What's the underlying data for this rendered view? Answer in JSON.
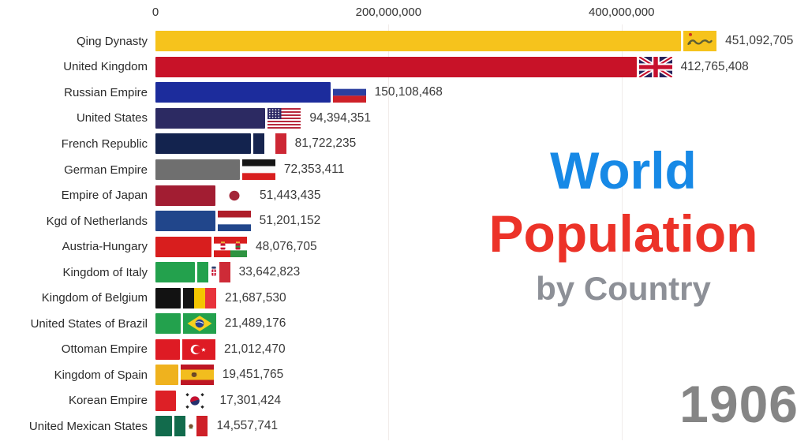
{
  "title": {
    "line1": "World",
    "line2": "Population",
    "line3": "by Country"
  },
  "year": "1906",
  "axis": {
    "max_value": 560000000,
    "ticks": [
      {
        "label": "0",
        "value": 0
      },
      {
        "label": "200,000,000",
        "value": 200000000
      },
      {
        "label": "400,000,000",
        "value": 400000000
      }
    ]
  },
  "chart_data": {
    "type": "bar",
    "orientation": "horizontal",
    "title": "World Population by Country",
    "year_shown": "1906",
    "xlim": [
      0,
      560000000
    ],
    "grid": "vertical-light",
    "categories": [
      "Qing Dynasty",
      "United Kingdom",
      "Russian Empire",
      "United States",
      "French Republic",
      "German Empire",
      "Empire of Japan",
      "Kgd of Netherlands",
      "Austria-Hungary",
      "Kingdom of Italy",
      "Kingdom of Belgium",
      "United States of Brazil",
      "Ottoman Empire",
      "Kingdom of Spain",
      "Korean Empire",
      "United Mexican States"
    ],
    "values": [
      451092705,
      412765408,
      150108468,
      94394351,
      81722235,
      72353411,
      51443435,
      51201152,
      48076705,
      33642823,
      21687530,
      21489176,
      21012470,
      19451765,
      17301424,
      14557741
    ],
    "value_labels": [
      "451,092,705",
      "412,765,408",
      "150,108,468",
      "94,394,351",
      "81,722,235",
      "72,353,411",
      "51,443,435",
      "51,201,152",
      "48,076,705",
      "33,642,823",
      "21,687,530",
      "21,489,176",
      "21,012,470",
      "19,451,765",
      "17,301,424",
      "14,557,741"
    ],
    "bar_colors": [
      "#F6C31C",
      "#C81228",
      "#1C2C9C",
      "#2C2A62",
      "#13234E",
      "#6F6F6F",
      "#A21D32",
      "#21468B",
      "#D81E1E",
      "#23A14D",
      "#121212",
      "#23A14D",
      "#DE1B24",
      "#EFB21E",
      "#DD2026",
      "#126B4C"
    ],
    "flags": [
      "qing",
      "uk",
      "russia",
      "usa",
      "france",
      "germany",
      "japan",
      "netherlands",
      "austria-hungary",
      "italy",
      "belgium",
      "brazil",
      "ottoman",
      "spain",
      "korea",
      "mexico"
    ]
  },
  "colors": {
    "title_line1": "#1789E6",
    "title_line2": "#EC3228",
    "title_line3": "#8D9097",
    "year": "#858585",
    "axis_text": "#333333",
    "label_text": "#2B2B2B",
    "value_text": "#3A3A3A",
    "gridline": "#F1ECEA",
    "background": "#FFFFFF"
  }
}
